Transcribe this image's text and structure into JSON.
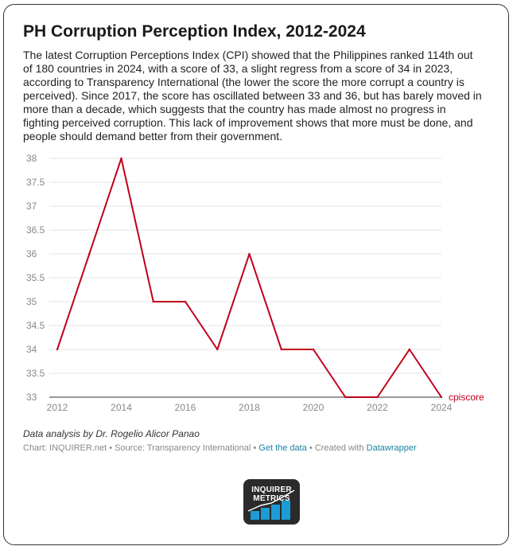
{
  "title": "PH Corruption Perception Index, 2012-2024",
  "description": "The latest Corruption Perceptions Index (CPI) showed that the Philippines ranked 114th out of 180 countries in 2024, with a score of 33, a slight regress from a score of 34 in 2023, according to Transparency International (the lower the score the more corrupt a country is perceived). Since 2017, the score has oscillated between 33 and 36, but has barely moved in more than a decade, which suggests that the country has made almost no progress in fighting perceived corruption. This lack of improvement shows that more must be done, and people should demand better from their government.",
  "chart_data": {
    "type": "line",
    "x": [
      2012,
      2013,
      2014,
      2015,
      2016,
      2017,
      2018,
      2019,
      2020,
      2021,
      2022,
      2023,
      2024
    ],
    "series": [
      {
        "name": "cpiscore",
        "values": [
          34,
          36,
          38,
          35,
          35,
          34,
          36,
          34,
          34,
          33,
          33,
          34,
          33
        ]
      }
    ],
    "x_ticks": [
      "2012",
      "2014",
      "2016",
      "2018",
      "2020",
      "2022",
      "2024"
    ],
    "y_ticks": [
      "33",
      "33.5",
      "34",
      "34.5",
      "35",
      "35.5",
      "36",
      "36.5",
      "37",
      "37.5",
      "38"
    ],
    "xlim": [
      2012,
      2024
    ],
    "ylim": [
      33,
      38
    ],
    "grid": true,
    "line_color": "#c0001a"
  },
  "note": "Data analysis by Dr. Rogelio Alicor Panao",
  "footer": {
    "chart_credit": "Chart: INQUIRER.net",
    "separator": " • ",
    "source": "Source: Transparency International",
    "get_data": "Get the data",
    "created_with": "Created with",
    "tool": "Datawrapper"
  },
  "logo": {
    "line1": "INQUIRER",
    "line2": "METRICS",
    "colors": [
      "#1d9bd7",
      "#ffffff",
      "#2b2b2b"
    ]
  }
}
